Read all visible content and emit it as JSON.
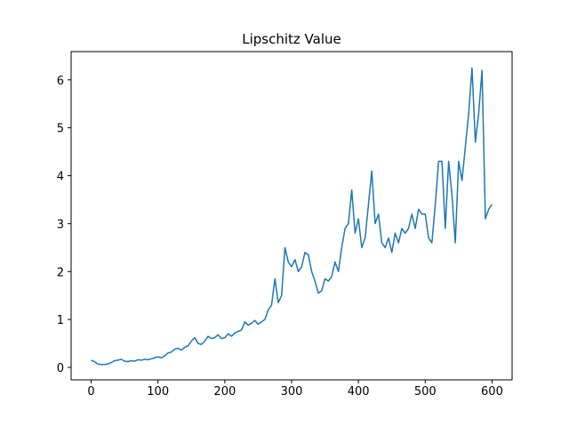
{
  "chart_data": {
    "type": "line",
    "title": "Lipschitz Value",
    "x": [
      0,
      5,
      10,
      15,
      20,
      25,
      30,
      35,
      40,
      45,
      50,
      55,
      60,
      65,
      70,
      75,
      80,
      85,
      90,
      95,
      100,
      105,
      110,
      115,
      120,
      125,
      130,
      135,
      140,
      145,
      150,
      155,
      160,
      165,
      170,
      175,
      180,
      185,
      190,
      195,
      200,
      205,
      210,
      215,
      220,
      225,
      230,
      235,
      240,
      245,
      250,
      255,
      260,
      265,
      270,
      275,
      280,
      285,
      290,
      295,
      300,
      305,
      310,
      315,
      320,
      325,
      330,
      335,
      340,
      345,
      350,
      355,
      360,
      365,
      370,
      375,
      380,
      385,
      390,
      395,
      400,
      405,
      410,
      415,
      420,
      425,
      430,
      435,
      440,
      445,
      450,
      455,
      460,
      465,
      470,
      475,
      480,
      485,
      490,
      495,
      500,
      505,
      510,
      515,
      520,
      525,
      530,
      535,
      540,
      545,
      550,
      555,
      560,
      565,
      570,
      575,
      580,
      585,
      590,
      595,
      600
    ],
    "series": [
      {
        "name": "Lipschitz Value",
        "color": "#1f77b4",
        "values": [
          0.15,
          0.12,
          0.07,
          0.06,
          0.06,
          0.07,
          0.1,
          0.14,
          0.15,
          0.17,
          0.13,
          0.12,
          0.14,
          0.13,
          0.16,
          0.15,
          0.17,
          0.16,
          0.18,
          0.2,
          0.22,
          0.2,
          0.24,
          0.3,
          0.32,
          0.38,
          0.4,
          0.36,
          0.42,
          0.45,
          0.55,
          0.62,
          0.5,
          0.48,
          0.55,
          0.65,
          0.6,
          0.62,
          0.68,
          0.6,
          0.62,
          0.7,
          0.65,
          0.72,
          0.75,
          0.78,
          0.95,
          0.88,
          0.92,
          0.98,
          0.9,
          0.95,
          1.0,
          1.2,
          1.3,
          1.85,
          1.35,
          1.5,
          2.5,
          2.2,
          2.1,
          2.25,
          2.0,
          2.1,
          2.4,
          2.35,
          2.0,
          1.8,
          1.55,
          1.6,
          1.85,
          1.8,
          1.9,
          2.2,
          2.0,
          2.5,
          2.9,
          3.0,
          3.7,
          2.8,
          3.1,
          2.5,
          2.7,
          3.4,
          4.1,
          3.0,
          3.2,
          2.6,
          2.5,
          2.7,
          2.4,
          2.8,
          2.6,
          2.9,
          2.8,
          2.9,
          3.2,
          2.9,
          3.3,
          3.2,
          3.2,
          2.7,
          2.6,
          3.4,
          4.3,
          4.3,
          2.9,
          4.3,
          3.6,
          2.6,
          4.3,
          3.9,
          4.6,
          5.3,
          6.25,
          4.7,
          5.3,
          6.2,
          3.1,
          3.3,
          3.4
        ]
      }
    ],
    "xlim": [
      -30,
      630
    ],
    "xticks": [
      0,
      100,
      200,
      300,
      400,
      500,
      600
    ],
    "ylim": [
      -0.26,
      6.59
    ],
    "yticks": [
      0,
      1,
      2,
      3,
      4,
      5,
      6
    ]
  }
}
